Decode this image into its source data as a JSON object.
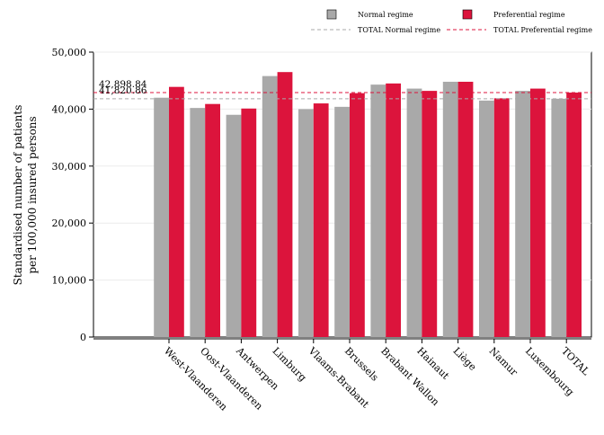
{
  "chart_data": {
    "type": "bar",
    "ylabel_lines": [
      "Standardised number of patients",
      "per 100,000 insured persons"
    ],
    "categories": [
      "West-Vlaanderen",
      "Oost-Vlaanderen",
      "Antwerpen",
      "Limburg",
      "Vlaams-Brabant",
      "Brussels",
      "Brabant Wallon",
      "Hainaut",
      "Liège",
      "Namur",
      "Luxembourg",
      "TOTAL"
    ],
    "series": [
      {
        "name": "Normal regime",
        "color": "#a9a9a9",
        "values": [
          42000,
          40200,
          39000,
          45800,
          40000,
          40400,
          44300,
          43600,
          44800,
          41500,
          43200,
          41820.86
        ]
      },
      {
        "name": "Preferential regime",
        "color": "#dc143c",
        "values": [
          43900,
          40900,
          40100,
          46500,
          41000,
          42800,
          44500,
          43200,
          44800,
          41900,
          43600,
          42898.84
        ]
      }
    ],
    "reference_lines": [
      {
        "name": "TOTAL Normal regime",
        "value": 41820.86,
        "label": "41,820.86",
        "color": "#a9a9a9"
      },
      {
        "name": "TOTAL Preferential regime",
        "value": 42898.84,
        "label": "42,898.84",
        "color": "#dc143c"
      }
    ],
    "ylim": [
      0,
      50000
    ],
    "yticks": [
      0,
      10000,
      20000,
      30000,
      40000,
      50000
    ],
    "ytick_labels": [
      "0",
      "10,000",
      "20,000",
      "30,000",
      "40,000",
      "50,000"
    ],
    "grid": true,
    "legend_position": "top-right"
  }
}
